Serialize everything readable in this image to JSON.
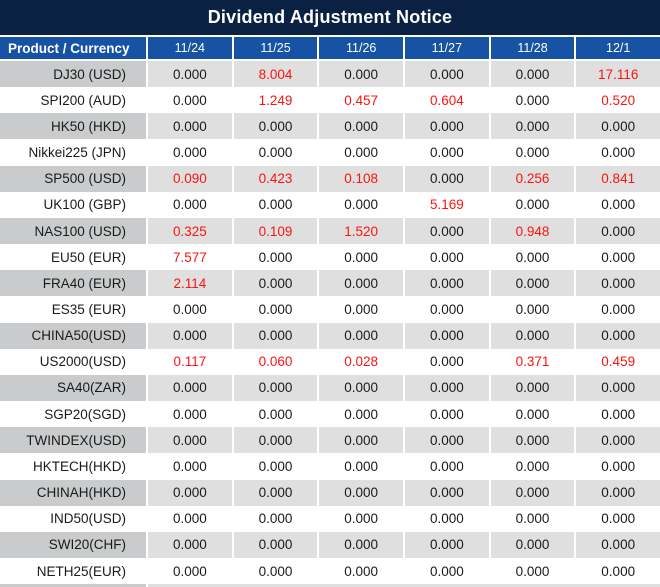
{
  "title": "Dividend Adjustment Notice",
  "table": {
    "product_header": "Product / Currency",
    "date_headers": [
      "11/24",
      "11/25",
      "11/26",
      "11/27",
      "11/28",
      "12/1"
    ],
    "zero_value": "0.000",
    "rows": [
      {
        "product": "DJ30 (USD)",
        "values": [
          "0.000",
          "8.004",
          "0.000",
          "0.000",
          "0.000",
          "17.116"
        ]
      },
      {
        "product": "SPI200 (AUD)",
        "values": [
          "0.000",
          "1.249",
          "0.457",
          "0.604",
          "0.000",
          "0.520"
        ]
      },
      {
        "product": "HK50 (HKD)",
        "values": [
          "0.000",
          "0.000",
          "0.000",
          "0.000",
          "0.000",
          "0.000"
        ]
      },
      {
        "product": "Nikkei225 (JPN)",
        "values": [
          "0.000",
          "0.000",
          "0.000",
          "0.000",
          "0.000",
          "0.000"
        ]
      },
      {
        "product": "SP500 (USD)",
        "values": [
          "0.090",
          "0.423",
          "0.108",
          "0.000",
          "0.256",
          "0.841"
        ]
      },
      {
        "product": "UK100 (GBP)",
        "values": [
          "0.000",
          "0.000",
          "0.000",
          "5.169",
          "0.000",
          "0.000"
        ]
      },
      {
        "product": "NAS100 (USD)",
        "values": [
          "0.325",
          "0.109",
          "1.520",
          "0.000",
          "0.948",
          "0.000"
        ]
      },
      {
        "product": "EU50 (EUR)",
        "values": [
          "7.577",
          "0.000",
          "0.000",
          "0.000",
          "0.000",
          "0.000"
        ]
      },
      {
        "product": "FRA40 (EUR)",
        "values": [
          "2.114",
          "0.000",
          "0.000",
          "0.000",
          "0.000",
          "0.000"
        ]
      },
      {
        "product": "ES35 (EUR)",
        "values": [
          "0.000",
          "0.000",
          "0.000",
          "0.000",
          "0.000",
          "0.000"
        ]
      },
      {
        "product": "CHINA50(USD)",
        "values": [
          "0.000",
          "0.000",
          "0.000",
          "0.000",
          "0.000",
          "0.000"
        ]
      },
      {
        "product": "US2000(USD)",
        "values": [
          "0.117",
          "0.060",
          "0.028",
          "0.000",
          "0.371",
          "0.459"
        ]
      },
      {
        "product": "SA40(ZAR)",
        "values": [
          "0.000",
          "0.000",
          "0.000",
          "0.000",
          "0.000",
          "0.000"
        ]
      },
      {
        "product": "SGP20(SGD)",
        "values": [
          "0.000",
          "0.000",
          "0.000",
          "0.000",
          "0.000",
          "0.000"
        ]
      },
      {
        "product": "TWINDEX(USD)",
        "values": [
          "0.000",
          "0.000",
          "0.000",
          "0.000",
          "0.000",
          "0.000"
        ]
      },
      {
        "product": "HKTECH(HKD)",
        "values": [
          "0.000",
          "0.000",
          "0.000",
          "0.000",
          "0.000",
          "0.000"
        ]
      },
      {
        "product": "CHINAH(HKD)",
        "values": [
          "0.000",
          "0.000",
          "0.000",
          "0.000",
          "0.000",
          "0.000"
        ]
      },
      {
        "product": "IND50(USD)",
        "values": [
          "0.000",
          "0.000",
          "0.000",
          "0.000",
          "0.000",
          "0.000"
        ]
      },
      {
        "product": "SWI20(CHF)",
        "values": [
          "0.000",
          "0.000",
          "0.000",
          "0.000",
          "0.000",
          "0.000"
        ]
      },
      {
        "product": "NETH25(EUR)",
        "values": [
          "0.000",
          "0.000",
          "0.000",
          "0.000",
          "0.000",
          "0.000"
        ]
      }
    ]
  },
  "colors": {
    "title_bg": "#0b2143",
    "header_bg": "#1653a4",
    "row_stripe_product_bg": "#c9cbcc",
    "row_stripe_value_bg": "#dfdfe0",
    "row_white_bg": "#ffffff",
    "zero_text": "#1a1a1a",
    "nonzero_text": "#fb1410",
    "header_text": "#ffffff"
  }
}
